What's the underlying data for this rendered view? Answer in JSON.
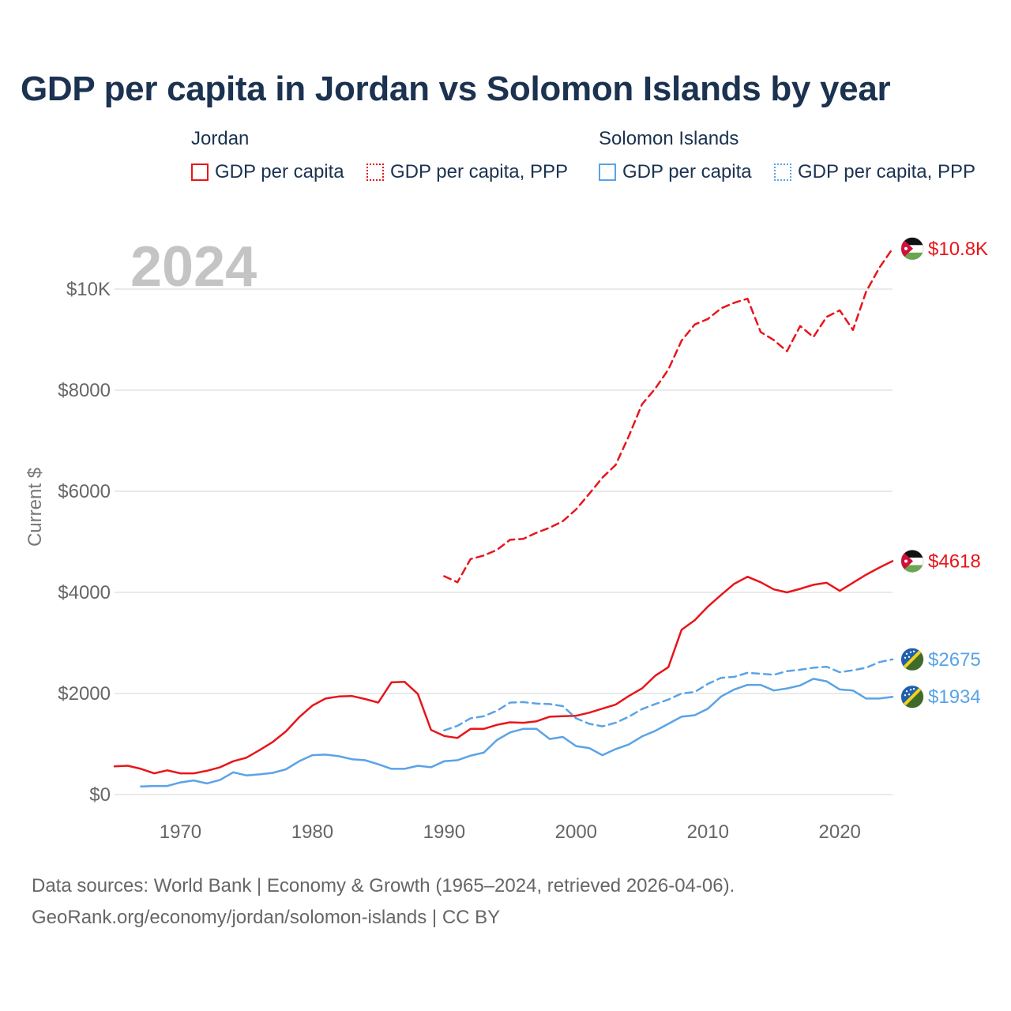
{
  "title": "GDP per capita in Jordan vs Solomon Islands by year",
  "legend": {
    "groups": [
      {
        "name": "Jordan",
        "color": "#e8151b",
        "items": [
          {
            "label": "GDP per capita",
            "style": "solid"
          },
          {
            "label": "GDP per capita, PPP",
            "style": "dotted"
          }
        ]
      },
      {
        "name": "Solomon Islands",
        "color": "#5aa3e6",
        "items": [
          {
            "label": "GDP per capita",
            "style": "solid"
          },
          {
            "label": "GDP per capita, PPP",
            "style": "dotted"
          }
        ]
      }
    ]
  },
  "footer": {
    "line1": "Data sources: World Bank | Economy & Growth (1965–2024, retrieved 2026-04-06).",
    "line2": "GeoRank.org/economy/jordan/solomon-islands | CC BY"
  },
  "chart_data": {
    "type": "line",
    "title": "GDP per capita in Jordan vs Solomon Islands by year",
    "year_watermark": "2024",
    "xlabel": "",
    "ylabel": "Current $",
    "xlim": [
      1965,
      2024
    ],
    "ylim": [
      0,
      11000
    ],
    "x_ticks": [
      1970,
      1980,
      1990,
      2000,
      2010,
      2020
    ],
    "y_ticks": [
      0,
      2000,
      4000,
      6000,
      8000,
      10000
    ],
    "y_tick_labels": [
      "$0",
      "$2000",
      "$4000",
      "$6000",
      "$8000",
      "$10K"
    ],
    "grid": true,
    "series": [
      {
        "name": "Jordan GDP per capita",
        "country": "Jordan",
        "color": "#e8151b",
        "dash": false,
        "end_label": "$4618",
        "x": [
          1965,
          1966,
          1967,
          1968,
          1969,
          1970,
          1971,
          1972,
          1973,
          1974,
          1975,
          1976,
          1977,
          1978,
          1979,
          1980,
          1981,
          1982,
          1983,
          1984,
          1985,
          1986,
          1987,
          1988,
          1989,
          1990,
          1991,
          1992,
          1993,
          1994,
          1995,
          1996,
          1997,
          1998,
          1999,
          2000,
          2001,
          2002,
          2003,
          2004,
          2005,
          2006,
          2007,
          2008,
          2009,
          2010,
          2011,
          2012,
          2013,
          2014,
          2015,
          2016,
          2017,
          2018,
          2019,
          2020,
          2021,
          2022,
          2023,
          2024
        ],
        "y": [
          560,
          570,
          510,
          420,
          480,
          420,
          420,
          470,
          540,
          660,
          730,
          880,
          1040,
          1250,
          1530,
          1760,
          1900,
          1940,
          1950,
          1890,
          1820,
          2220,
          2230,
          1990,
          1280,
          1160,
          1120,
          1300,
          1300,
          1380,
          1430,
          1420,
          1450,
          1540,
          1550,
          1560,
          1620,
          1700,
          1780,
          1950,
          2100,
          2350,
          2520,
          3260,
          3450,
          3720,
          3950,
          4170,
          4310,
          4200,
          4060,
          4000,
          4070,
          4150,
          4190,
          4030,
          4190,
          4350,
          4490,
          4618
        ]
      },
      {
        "name": "Jordan GDP per capita, PPP",
        "country": "Jordan",
        "color": "#e8151b",
        "dash": true,
        "end_label": "$10.8K",
        "x": [
          1990,
          1991,
          1992,
          1993,
          1994,
          1995,
          1996,
          1997,
          1998,
          1999,
          2000,
          2001,
          2002,
          2003,
          2004,
          2005,
          2006,
          2007,
          2008,
          2009,
          2010,
          2011,
          2012,
          2013,
          2014,
          2015,
          2016,
          2017,
          2018,
          2019,
          2020,
          2021,
          2022,
          2023,
          2024
        ],
        "y": [
          4320,
          4200,
          4660,
          4730,
          4840,
          5040,
          5060,
          5180,
          5280,
          5410,
          5640,
          5950,
          6270,
          6520,
          7090,
          7720,
          8030,
          8410,
          8980,
          9300,
          9410,
          9620,
          9730,
          9810,
          9150,
          8990,
          8770,
          9270,
          9050,
          9450,
          9580,
          9190,
          9950,
          10420,
          10800
        ]
      },
      {
        "name": "Solomon Islands GDP per capita",
        "country": "Solomon Islands",
        "color": "#5aa3e6",
        "dash": false,
        "end_label": "$1934",
        "x": [
          1967,
          1968,
          1969,
          1970,
          1971,
          1972,
          1973,
          1974,
          1975,
          1976,
          1977,
          1978,
          1979,
          1980,
          1981,
          1982,
          1983,
          1984,
          1985,
          1986,
          1987,
          1988,
          1989,
          1990,
          1991,
          1992,
          1993,
          1994,
          1995,
          1996,
          1997,
          1998,
          1999,
          2000,
          2001,
          2002,
          2003,
          2004,
          2005,
          2006,
          2007,
          2008,
          2009,
          2010,
          2011,
          2012,
          2013,
          2014,
          2015,
          2016,
          2017,
          2018,
          2019,
          2020,
          2021,
          2022,
          2023,
          2024
        ],
        "y": [
          160,
          170,
          170,
          240,
          280,
          220,
          290,
          440,
          380,
          400,
          430,
          500,
          660,
          780,
          790,
          760,
          700,
          680,
          600,
          510,
          510,
          570,
          540,
          660,
          680,
          770,
          830,
          1080,
          1230,
          1300,
          1300,
          1100,
          1140,
          960,
          920,
          780,
          900,
          990,
          1150,
          1260,
          1400,
          1540,
          1570,
          1700,
          1940,
          2080,
          2170,
          2170,
          2060,
          2100,
          2160,
          2290,
          2240,
          2080,
          2060,
          1900,
          1900,
          1934
        ]
      },
      {
        "name": "Solomon Islands GDP per capita, PPP",
        "country": "Solomon Islands",
        "color": "#5aa3e6",
        "dash": true,
        "end_label": "$2675",
        "x": [
          1990,
          1991,
          1992,
          1993,
          1994,
          1995,
          1996,
          1997,
          1998,
          1999,
          2000,
          2001,
          2002,
          2003,
          2004,
          2005,
          2006,
          2007,
          2008,
          2009,
          2010,
          2011,
          2012,
          2013,
          2014,
          2015,
          2016,
          2017,
          2018,
          2019,
          2020,
          2021,
          2022,
          2023,
          2024
        ],
        "y": [
          1270,
          1360,
          1510,
          1550,
          1660,
          1820,
          1830,
          1800,
          1790,
          1750,
          1510,
          1400,
          1350,
          1420,
          1540,
          1690,
          1790,
          1880,
          2000,
          2030,
          2190,
          2310,
          2330,
          2410,
          2390,
          2370,
          2440,
          2470,
          2510,
          2530,
          2420,
          2460,
          2510,
          2620,
          2675
        ]
      }
    ]
  }
}
